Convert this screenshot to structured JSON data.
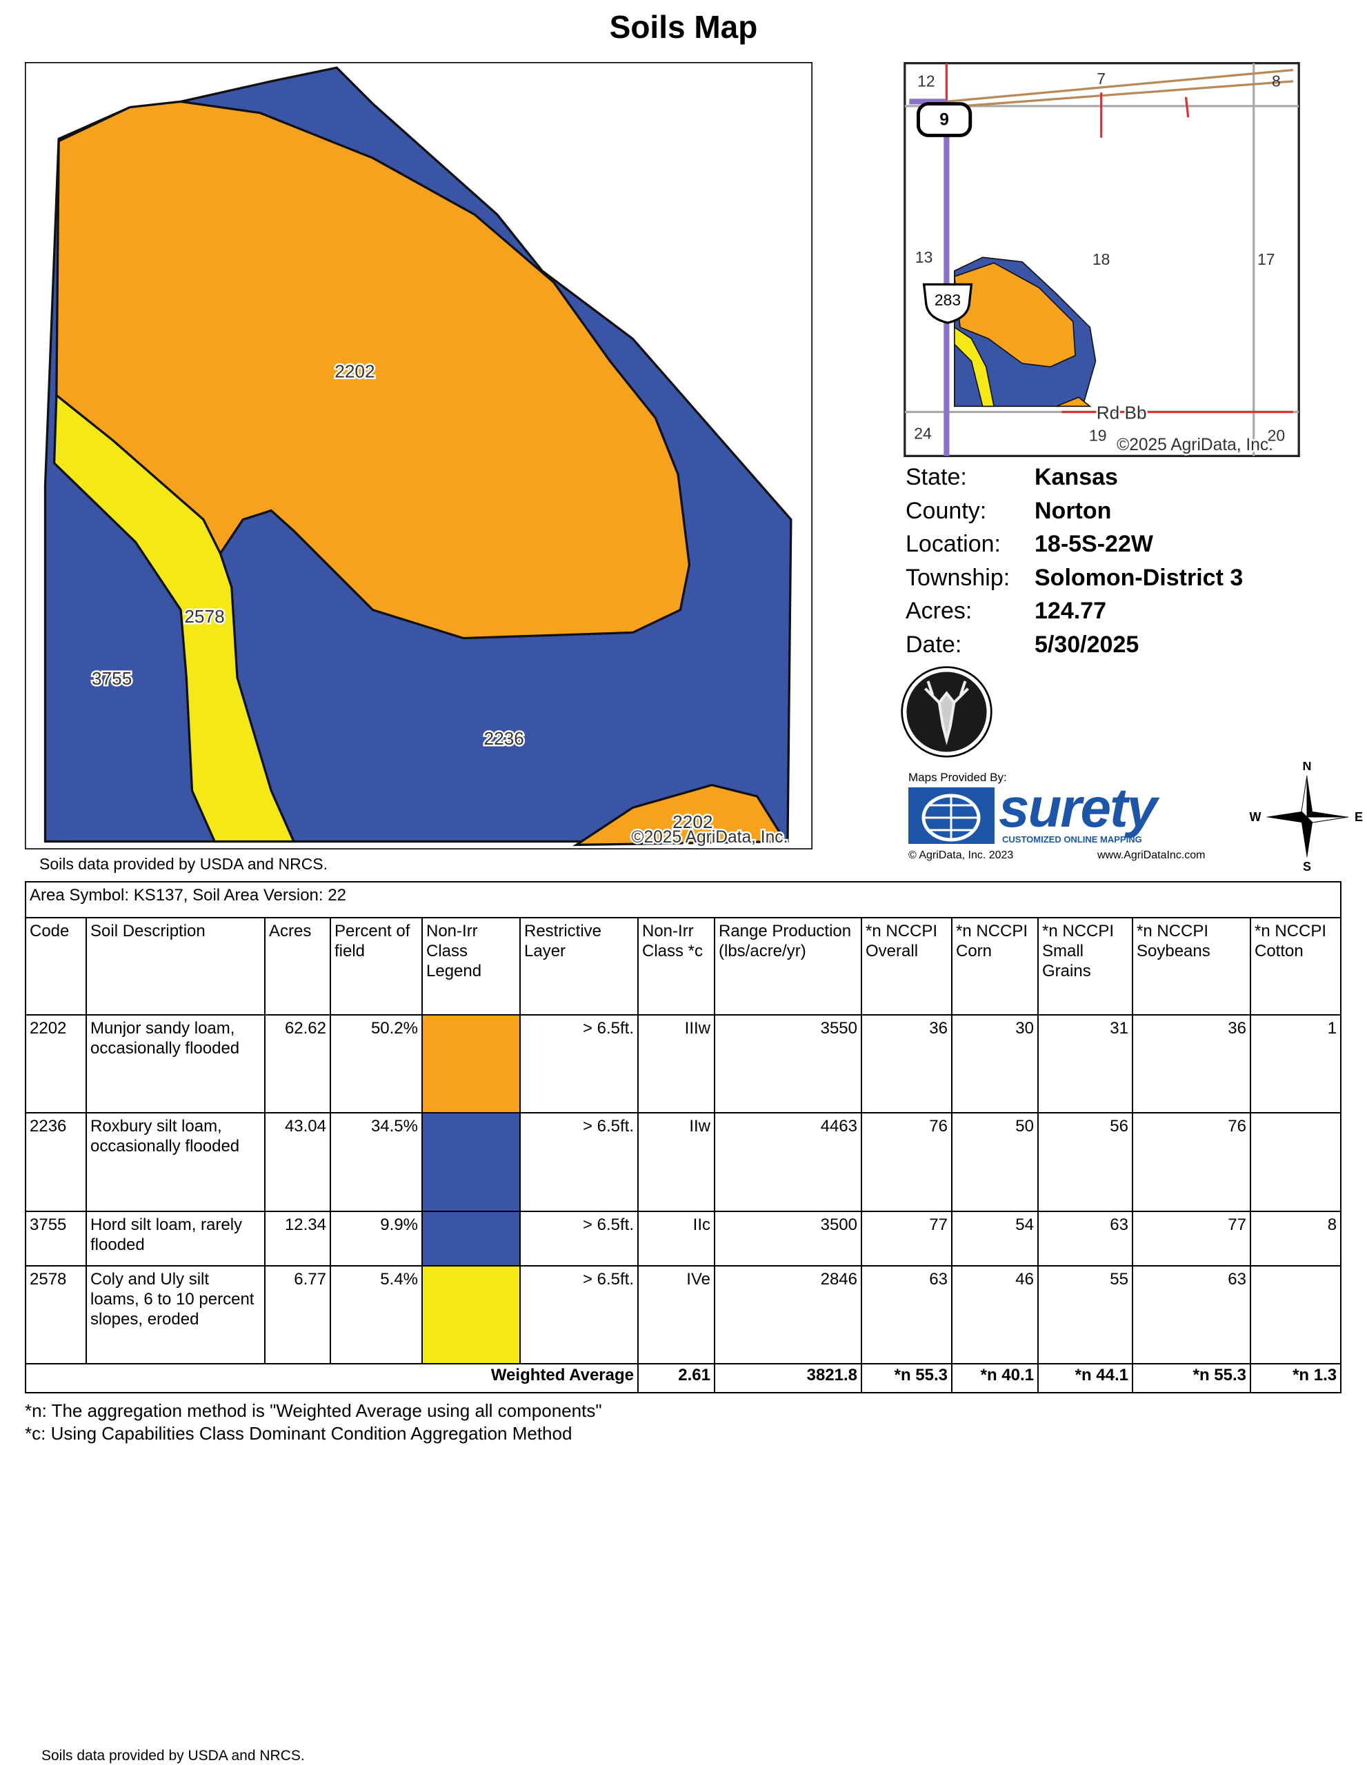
{
  "header": {
    "title": "Soils Map"
  },
  "map": {
    "labels": [
      "2202",
      "2578",
      "3755",
      "2236",
      "2202"
    ],
    "copyright": "©2025 AgriData, Inc.",
    "source": "Soils data provided by USDA and NRCS."
  },
  "locator": {
    "sections": [
      "12",
      "7",
      "8",
      "13",
      "18",
      "17",
      "24",
      "19",
      "20"
    ],
    "shields": [
      "9",
      "283"
    ],
    "road": "Rd Bb",
    "copyright": "©2025 AgriData, Inc."
  },
  "info": [
    {
      "label": "State:",
      "value": "Kansas"
    },
    {
      "label": "County:",
      "value": "Norton"
    },
    {
      "label": "Location:",
      "value": "18-5S-22W"
    },
    {
      "label": "Township:",
      "value": "Solomon-District 3"
    },
    {
      "label": "Acres:",
      "value": "124.77"
    },
    {
      "label": "Date:",
      "value": "5/30/2025"
    }
  ],
  "branding": {
    "provided_by": "Maps Provided By:",
    "name": "surety",
    "tagline": "CUSTOMIZED ONLINE MAPPING",
    "copyright": "© AgriData, Inc. 2023",
    "url": "www.AgriDataInc.com"
  },
  "compass": {
    "n": "N",
    "w": "W",
    "e": "E",
    "s": "S"
  },
  "table": {
    "area": "Area Symbol: KS137, Soil Area Version: 22",
    "headers": [
      "Code",
      "Soil Description",
      "Acres",
      "Percent of field",
      "Non-Irr Class Legend",
      "Restrictive Layer",
      "Non-Irr Class *c",
      "Range Production (lbs/acre/yr)",
      "*n NCCPI Overall",
      "*n NCCPI Corn",
      "*n NCCPI Small Grains",
      "*n NCCPI Soybeans",
      "*n NCCPI Cotton"
    ],
    "rows": [
      {
        "code": "2202",
        "description": "Munjor sandy loam, occasionally flooded",
        "acres": "62.62",
        "percent": "50.2%",
        "legend_color": "#f7a21c",
        "restrictive": "> 6.5ft.",
        "class": "IIIw",
        "range": "3550",
        "overall": "36",
        "corn": "30",
        "small_grains": "31",
        "soybeans": "36",
        "cotton": "1"
      },
      {
        "code": "2236",
        "description": "Roxbury silt loam, occasionally flooded",
        "acres": "43.04",
        "percent": "34.5%",
        "legend_color": "#3a54a6",
        "restrictive": "> 6.5ft.",
        "class": "IIw",
        "range": "4463",
        "overall": "76",
        "corn": "50",
        "small_grains": "56",
        "soybeans": "76",
        "cotton": null
      },
      {
        "code": "3755",
        "description": "Hord silt loam, rarely flooded",
        "acres": "12.34",
        "percent": "9.9%",
        "legend_color": "#3a54a6",
        "restrictive": "> 6.5ft.",
        "class": "IIc",
        "range": "3500",
        "overall": "77",
        "corn": "54",
        "small_grains": "63",
        "soybeans": "77",
        "cotton": "8"
      },
      {
        "code": "2578",
        "description": "Coly and Uly silt loams, 6 to 10 percent slopes, eroded",
        "acres": "6.77",
        "percent": "5.4%",
        "legend_color": "#f4e917",
        "restrictive": "> 6.5ft.",
        "class": "IVe",
        "range": "2846",
        "overall": "63",
        "corn": "46",
        "small_grains": "55",
        "soybeans": "63",
        "cotton": null
      }
    ],
    "weighted": {
      "label": "Weighted Average",
      "values": [
        "2.61",
        "3821.8",
        "*n 55.3",
        "*n 40.1",
        "*n 44.1",
        "*n 55.3",
        "*n 1.3"
      ]
    }
  },
  "footnotes": [
    "*n: The aggregation method is \"Weighted Average using all components\"",
    "*c: Using Capabilities Class Dominant Condition Aggregation Method"
  ],
  "footer": "Soils data provided by USDA and NRCS."
}
